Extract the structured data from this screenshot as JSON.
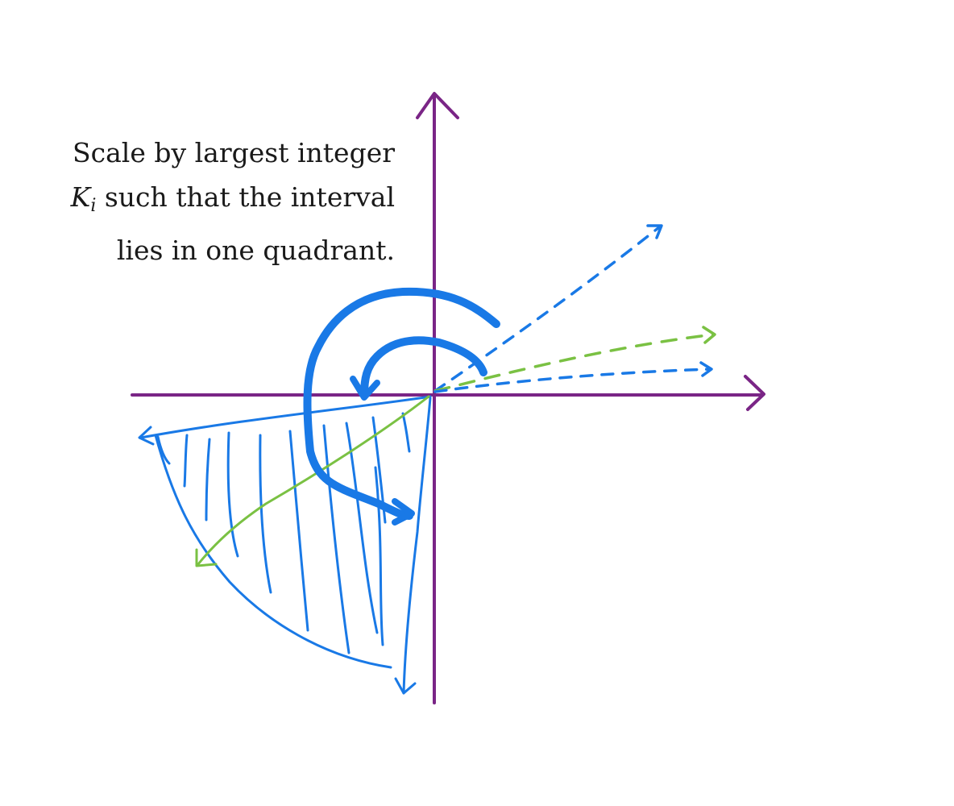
{
  "annotation": {
    "line1": "Scale by largest integer",
    "line2_var": "K",
    "line2_sub": "i",
    "line2_rest": " such that the interval",
    "line3": "lies in one quadrant."
  },
  "colors": {
    "axis": "#7a2586",
    "blue": "#1979e6",
    "green": "#7ac143"
  }
}
